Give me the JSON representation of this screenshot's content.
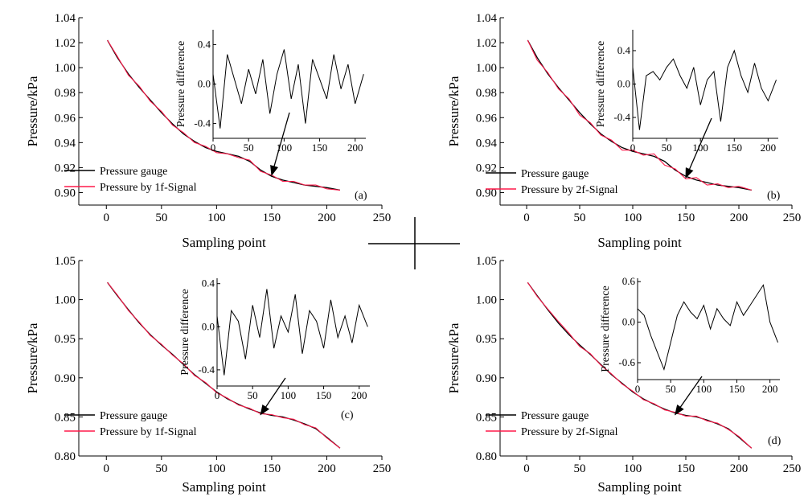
{
  "colors": {
    "gauge": "#000000",
    "signal": "#ff1a4a"
  },
  "chart_data": [
    {
      "type": "line",
      "panel_label": "(a)",
      "xlabel": "Sampling point",
      "ylabel": "Pressure/kPa",
      "xlim": [
        -25,
        250
      ],
      "ylim": [
        0.89,
        1.04
      ],
      "xticks": [
        0,
        50,
        100,
        150,
        200,
        250
      ],
      "yticks": [
        0.9,
        0.92,
        0.94,
        0.96,
        0.98,
        1.0,
        1.02,
        1.04
      ],
      "ytick_labels": [
        "0.90",
        "0.92",
        "0.94",
        "0.96",
        "0.98",
        "1.00",
        "1.02",
        "1.04"
      ],
      "legend_position": "bottom-left",
      "series": [
        {
          "name": "Pressure gauge",
          "color": "#000000",
          "x": [
            1,
            10,
            20,
            30,
            40,
            50,
            60,
            70,
            80,
            90,
            100,
            110,
            120,
            130,
            140,
            150,
            160,
            170,
            180,
            190,
            200,
            212
          ],
          "y": [
            1.022,
            1.008,
            0.995,
            0.984,
            0.974,
            0.964,
            0.955,
            0.947,
            0.941,
            0.936,
            0.933,
            0.931,
            0.929,
            0.925,
            0.918,
            0.913,
            0.91,
            0.908,
            0.906,
            0.905,
            0.904,
            0.902
          ]
        },
        {
          "name": "Pressure by 1f-Signal",
          "color": "#ff1a4a",
          "x": [
            1,
            10,
            20,
            30,
            40,
            50,
            60,
            70,
            80,
            90,
            100,
            110,
            120,
            130,
            140,
            150,
            160,
            170,
            180,
            190,
            200,
            212
          ],
          "y": [
            1.022,
            1.009,
            0.994,
            0.985,
            0.973,
            0.965,
            0.954,
            0.948,
            0.94,
            0.937,
            0.932,
            0.931,
            0.928,
            0.926,
            0.917,
            0.914,
            0.909,
            0.909,
            0.906,
            0.906,
            0.903,
            0.902
          ]
        }
      ],
      "inset": {
        "ylabel": "Pressure difference",
        "xlim": [
          0,
          215
        ],
        "ylim": [
          -0.55,
          0.55
        ],
        "xticks": [
          0,
          50,
          100,
          150,
          200
        ],
        "yticks": [
          -0.4,
          0.0,
          0.4
        ],
        "ytick_labels": [
          "-0.4",
          "0.0",
          "0.4"
        ],
        "x": [
          0,
          10,
          20,
          30,
          40,
          50,
          60,
          70,
          80,
          90,
          100,
          110,
          120,
          130,
          140,
          150,
          160,
          170,
          180,
          190,
          200,
          212
        ],
        "y": [
          0.1,
          -0.45,
          0.3,
          0.05,
          -0.2,
          0.15,
          -0.1,
          0.25,
          -0.3,
          0.1,
          0.35,
          -0.15,
          0.2,
          -0.4,
          0.25,
          0.05,
          -0.15,
          0.3,
          -0.05,
          0.2,
          -0.2,
          0.1
        ]
      }
    },
    {
      "type": "line",
      "panel_label": "(b)",
      "xlabel": "Sampling point",
      "ylabel": "Pressure/kPa",
      "xlim": [
        -25,
        250
      ],
      "ylim": [
        0.89,
        1.04
      ],
      "xticks": [
        0,
        50,
        100,
        150,
        200,
        250
      ],
      "yticks": [
        0.9,
        0.92,
        0.94,
        0.96,
        0.98,
        1.0,
        1.02,
        1.04
      ],
      "ytick_labels": [
        "0.90",
        "0.92",
        "0.94",
        "0.96",
        "0.98",
        "1.00",
        "1.02",
        "1.04"
      ],
      "legend_position": "bottom-left",
      "series": [
        {
          "name": "Pressure gauge",
          "color": "#000000",
          "x": [
            1,
            10,
            20,
            30,
            40,
            50,
            60,
            70,
            80,
            90,
            100,
            110,
            120,
            130,
            140,
            150,
            160,
            170,
            180,
            190,
            200,
            212
          ],
          "y": [
            1.022,
            1.008,
            0.995,
            0.984,
            0.974,
            0.964,
            0.955,
            0.947,
            0.941,
            0.936,
            0.933,
            0.931,
            0.929,
            0.925,
            0.918,
            0.913,
            0.91,
            0.908,
            0.906,
            0.905,
            0.904,
            0.902
          ]
        },
        {
          "name": "Pressure by 2f-Signal",
          "color": "#ff1a4a",
          "x": [
            1,
            10,
            20,
            30,
            40,
            50,
            60,
            70,
            80,
            90,
            100,
            110,
            120,
            130,
            140,
            150,
            160,
            170,
            180,
            190,
            200,
            212
          ],
          "y": [
            1.022,
            1.006,
            0.996,
            0.983,
            0.975,
            0.962,
            0.956,
            0.946,
            0.942,
            0.934,
            0.934,
            0.93,
            0.931,
            0.922,
            0.919,
            0.911,
            0.912,
            0.906,
            0.907,
            0.904,
            0.905,
            0.902
          ]
        }
      ],
      "inset": {
        "ylabel": "Pressure difference",
        "xlim": [
          0,
          215
        ],
        "ylim": [
          -0.65,
          0.65
        ],
        "xticks": [
          0,
          50,
          100,
          150,
          200
        ],
        "yticks": [
          -0.4,
          0.0,
          0.4
        ],
        "ytick_labels": [
          "-0.4",
          "0.0",
          "0.4"
        ],
        "x": [
          0,
          10,
          20,
          30,
          40,
          50,
          60,
          70,
          80,
          90,
          100,
          110,
          120,
          130,
          140,
          150,
          160,
          170,
          180,
          190,
          200,
          212
        ],
        "y": [
          0.2,
          -0.55,
          0.1,
          0.15,
          0.05,
          0.2,
          0.3,
          0.1,
          -0.05,
          0.2,
          -0.25,
          0.05,
          0.15,
          -0.45,
          0.2,
          0.4,
          0.1,
          -0.1,
          0.25,
          -0.05,
          -0.2,
          0.05
        ]
      }
    },
    {
      "type": "line",
      "panel_label": "(c)",
      "xlabel": "Sampling point",
      "ylabel": "Pressure/kPa",
      "xlim": [
        -25,
        250
      ],
      "ylim": [
        0.8,
        1.05
      ],
      "xticks": [
        0,
        50,
        100,
        150,
        200,
        250
      ],
      "yticks": [
        0.8,
        0.85,
        0.9,
        0.95,
        1.0,
        1.05
      ],
      "ytick_labels": [
        "0.80",
        "0.85",
        "0.90",
        "0.95",
        "1.00",
        "1.05"
      ],
      "legend_position": "bottom-left",
      "series": [
        {
          "name": "Pressure gauge",
          "color": "#000000",
          "x": [
            1,
            10,
            20,
            30,
            40,
            50,
            60,
            70,
            80,
            90,
            100,
            110,
            120,
            130,
            140,
            150,
            160,
            170,
            180,
            190,
            200,
            212
          ],
          "y": [
            1.022,
            1.005,
            0.987,
            0.97,
            0.955,
            0.942,
            0.93,
            0.917,
            0.904,
            0.893,
            0.882,
            0.873,
            0.866,
            0.86,
            0.855,
            0.852,
            0.85,
            0.846,
            0.841,
            0.835,
            0.824,
            0.81
          ]
        },
        {
          "name": "Pressure by 1f-Signal",
          "color": "#ff1a4a",
          "x": [
            1,
            10,
            20,
            30,
            40,
            50,
            60,
            70,
            80,
            90,
            100,
            110,
            120,
            130,
            140,
            150,
            160,
            170,
            180,
            190,
            200,
            212
          ],
          "y": [
            1.022,
            1.006,
            0.986,
            0.971,
            0.954,
            0.943,
            0.929,
            0.918,
            0.903,
            0.894,
            0.881,
            0.874,
            0.865,
            0.861,
            0.854,
            0.853,
            0.849,
            0.847,
            0.84,
            0.836,
            0.823,
            0.81
          ]
        }
      ],
      "inset": {
        "ylabel": "Pressure difference",
        "xlim": [
          0,
          215
        ],
        "ylim": [
          -0.55,
          0.45
        ],
        "xticks": [
          0,
          50,
          100,
          150,
          200
        ],
        "yticks": [
          -0.4,
          0.0,
          0.4
        ],
        "ytick_labels": [
          "-0.4",
          "0.0",
          "0.4"
        ],
        "x": [
          0,
          10,
          20,
          30,
          40,
          50,
          60,
          70,
          80,
          90,
          100,
          110,
          120,
          130,
          140,
          150,
          160,
          170,
          180,
          190,
          200,
          212
        ],
        "y": [
          0.1,
          -0.45,
          0.15,
          0.05,
          -0.3,
          0.2,
          -0.1,
          0.35,
          -0.2,
          0.1,
          -0.05,
          0.3,
          -0.25,
          0.15,
          0.05,
          -0.2,
          0.25,
          -0.1,
          0.1,
          -0.15,
          0.2,
          0.0
        ]
      }
    },
    {
      "type": "line",
      "panel_label": "(d)",
      "xlabel": "Sampling point",
      "ylabel": "Pressure/kPa",
      "xlim": [
        -25,
        250
      ],
      "ylim": [
        0.8,
        1.05
      ],
      "xticks": [
        0,
        50,
        100,
        150,
        200,
        250
      ],
      "yticks": [
        0.8,
        0.85,
        0.9,
        0.95,
        1.0,
        1.05
      ],
      "ytick_labels": [
        "0.80",
        "0.85",
        "0.90",
        "0.95",
        "1.00",
        "1.05"
      ],
      "legend_position": "bottom-left",
      "series": [
        {
          "name": "Pressure gauge",
          "color": "#000000",
          "x": [
            1,
            10,
            20,
            30,
            40,
            50,
            60,
            70,
            80,
            90,
            100,
            110,
            120,
            130,
            140,
            150,
            160,
            170,
            180,
            190,
            200,
            212
          ],
          "y": [
            1.022,
            1.005,
            0.987,
            0.97,
            0.955,
            0.942,
            0.93,
            0.917,
            0.904,
            0.893,
            0.882,
            0.873,
            0.866,
            0.86,
            0.855,
            0.852,
            0.85,
            0.846,
            0.841,
            0.835,
            0.824,
            0.81
          ]
        },
        {
          "name": "Pressure by 2f-Signal",
          "color": "#ff1a4a",
          "x": [
            1,
            10,
            20,
            30,
            40,
            50,
            60,
            70,
            80,
            90,
            100,
            110,
            120,
            130,
            140,
            150,
            160,
            170,
            180,
            190,
            200,
            212
          ],
          "y": [
            1.022,
            1.004,
            0.988,
            0.972,
            0.957,
            0.94,
            0.931,
            0.916,
            0.905,
            0.892,
            0.883,
            0.872,
            0.867,
            0.859,
            0.856,
            0.851,
            0.851,
            0.845,
            0.842,
            0.834,
            0.825,
            0.81
          ]
        }
      ],
      "inset": {
        "ylabel": "Pressure difference",
        "xlim": [
          0,
          215
        ],
        "ylim": [
          -0.85,
          0.65
        ],
        "xticks": [
          0,
          50,
          100,
          150,
          200
        ],
        "yticks": [
          -0.6,
          0.0,
          0.6
        ],
        "ytick_labels": [
          "-0.6",
          "0.0",
          "0.6"
        ],
        "x": [
          0,
          10,
          20,
          30,
          40,
          50,
          60,
          70,
          80,
          90,
          100,
          110,
          120,
          130,
          140,
          150,
          160,
          170,
          180,
          190,
          200,
          212
        ],
        "y": [
          0.2,
          0.1,
          -0.2,
          -0.45,
          -0.7,
          -0.3,
          0.1,
          0.3,
          0.15,
          0.05,
          0.25,
          -0.1,
          0.2,
          0.05,
          -0.05,
          0.3,
          0.1,
          0.25,
          0.4,
          0.55,
          0.0,
          -0.3
        ]
      }
    }
  ]
}
